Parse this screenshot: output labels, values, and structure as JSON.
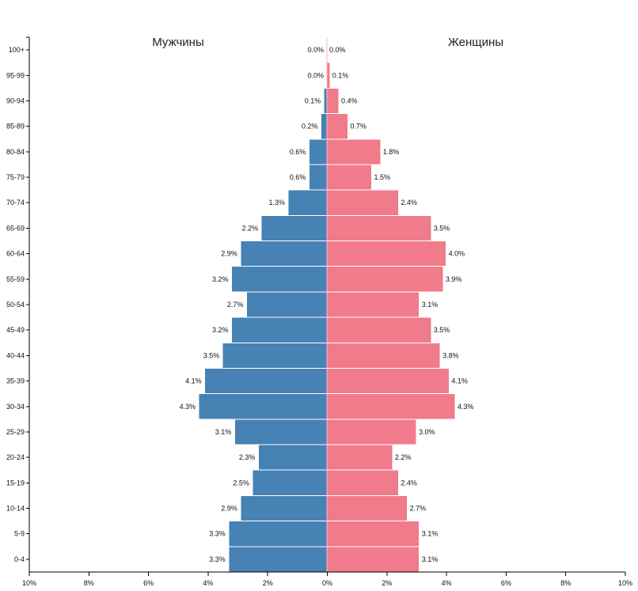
{
  "chart_data": {
    "type": "bar",
    "orientation": "horizontal",
    "layout": "population-pyramid",
    "left_label": "Мужчины",
    "right_label": "Женщины",
    "categories": [
      "100+",
      "95-99",
      "90-94",
      "85-89",
      "80-84",
      "75-79",
      "70-74",
      "65-69",
      "60-64",
      "55-59",
      "50-54",
      "45-49",
      "40-44",
      "35-39",
      "30-34",
      "25-29",
      "20-24",
      "15-19",
      "10-14",
      "5-9",
      "0-4"
    ],
    "series": [
      {
        "name": "Мужчины",
        "color": "#4682b4",
        "values": [
          0.0,
          0.0,
          0.1,
          0.2,
          0.6,
          0.6,
          1.3,
          2.2,
          2.9,
          3.2,
          2.7,
          3.2,
          3.5,
          4.1,
          4.3,
          3.1,
          2.3,
          2.5,
          2.9,
          3.3,
          3.3
        ],
        "labels": [
          "0.0%",
          "0.0%",
          "0.1%",
          "0.2%",
          "0.6%",
          "0.6%",
          "1.3%",
          "2.2%",
          "2.9%",
          "3.2%",
          "2.7%",
          "3.2%",
          "3.5%",
          "4.1%",
          "4.3%",
          "3.1%",
          "2.3%",
          "2.5%",
          "2.9%",
          "3.3%",
          "3.3%"
        ]
      },
      {
        "name": "Женщины",
        "color": "#f07b8a",
        "values": [
          0.0,
          0.1,
          0.4,
          0.7,
          1.8,
          1.5,
          2.4,
          3.5,
          4.0,
          3.9,
          3.1,
          3.5,
          3.8,
          4.1,
          4.3,
          3.0,
          2.2,
          2.4,
          2.7,
          3.1,
          3.1
        ],
        "labels": [
          "0.0%",
          "0.1%",
          "0.4%",
          "0.7%",
          "1.8%",
          "1.5%",
          "2.4%",
          "3.5%",
          "4.0%",
          "3.9%",
          "3.1%",
          "3.5%",
          "3.8%",
          "4.1%",
          "4.3%",
          "3.0%",
          "2.2%",
          "2.4%",
          "2.7%",
          "3.1%",
          "3.1%"
        ]
      }
    ],
    "xaxis": {
      "range": [
        -10,
        10
      ],
      "ticks": [
        -10,
        -8,
        -6,
        -4,
        -2,
        0,
        2,
        4,
        6,
        8,
        10
      ],
      "tick_labels": [
        "10%",
        "8%",
        "6%",
        "4%",
        "2%",
        "0%",
        "2%",
        "4%",
        "6%",
        "8%",
        "10%"
      ]
    },
    "grid": false,
    "legend": "none"
  }
}
